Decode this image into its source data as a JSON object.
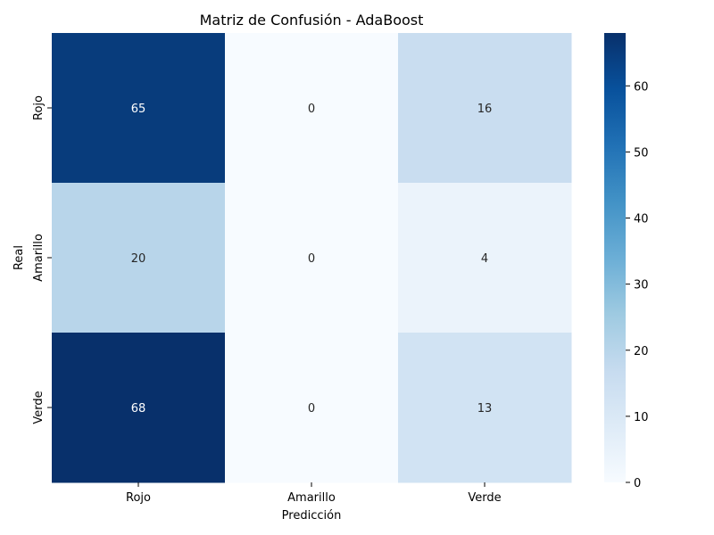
{
  "chart_data": {
    "type": "heatmap",
    "title": "Matriz de Confusión - AdaBoost",
    "xlabel": "Predicción",
    "ylabel": "Real",
    "x_categories": [
      "Rojo",
      "Amarillo",
      "Verde"
    ],
    "y_categories": [
      "Rojo",
      "Amarillo",
      "Verde"
    ],
    "values": [
      [
        65,
        0,
        16
      ],
      [
        20,
        0,
        4
      ],
      [
        68,
        0,
        13
      ]
    ],
    "colormap": "Blues",
    "vmin": 0,
    "vmax": 68,
    "colorbar_ticks": [
      0,
      10,
      20,
      30,
      40,
      50,
      60
    ],
    "annotations": true
  }
}
